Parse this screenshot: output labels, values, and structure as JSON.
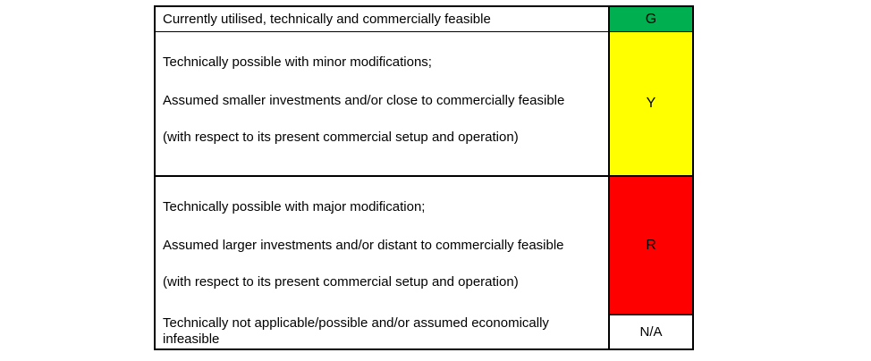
{
  "legend": {
    "border_color": "#000000",
    "text_color": "#000000",
    "rows": [
      {
        "paragraphs": [
          "Currently utilised, technically and commercially feasible"
        ],
        "code": "G",
        "color": "#00B050"
      },
      {
        "paragraphs": [
          "Technically possible with minor modifications;",
          "Assumed smaller investments and/or close to commercially feasible",
          "(with respect to its present commercial setup and operation)"
        ],
        "code": "Y",
        "color": "#FFFF00"
      },
      {
        "paragraphs": [
          "Technically possible with major modification;",
          "Assumed larger investments and/or distant to commercially feasible",
          "(with respect to its present commercial setup and operation)"
        ],
        "code": "R",
        "color": "#FF0000"
      },
      {
        "paragraphs": [
          "Technically not applicable/possible and/or assumed economically infeasible"
        ],
        "code": "N/A",
        "color": "#FFFFFF"
      }
    ]
  }
}
